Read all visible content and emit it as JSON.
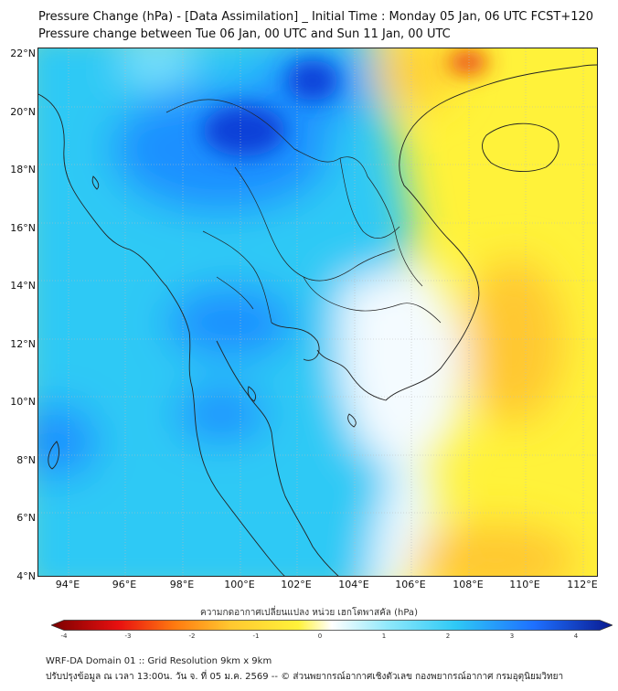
{
  "header": {
    "title_line1": "Pressure Change (hPa) - [Data Assimilation] _ Initial Time : Monday 05 Jan, 06 UTC FCST+120",
    "title_line2": "Pressure change between Tue 06 Jan, 00 UTC and Sun 11 Jan, 00 UTC"
  },
  "map": {
    "lat_labels": [
      "22°N",
      "20°N",
      "18°N",
      "16°N",
      "14°N",
      "12°N",
      "10°N",
      "8°N",
      "6°N",
      "4°N"
    ],
    "lon_labels": [
      "94°E",
      "96°E",
      "98°E",
      "100°E",
      "102°E",
      "104°E",
      "106°E",
      "108°E",
      "110°E",
      "112°E"
    ],
    "colors": {
      "sea_white": "#ffffff",
      "light_cyan": "#7fe3fb",
      "cyan": "#2fc9f5",
      "blue": "#1e90ff",
      "dark_blue": "#0a3fd8",
      "yellow": "#fff23a",
      "orange": "#ffc830",
      "red": "#e83010",
      "coast": "#222222"
    }
  },
  "colorbar": {
    "label": "ความกดอากาศเปลี่ยนแปลง หน่วย เฮกโตพาสคัล (hPa)",
    "ticks": [
      "-4",
      "-3",
      "-2",
      "-1",
      "0",
      "1",
      "2",
      "3",
      "4"
    ],
    "range": [
      -4,
      4
    ]
  },
  "footer": {
    "line1": "WRF-DA Domain 01 :: Grid Resolution 9km x 9km",
    "line2": "ปรับปรุงข้อมูล ณ เวลา 13:00น. วัน จ. ที่ 05 ม.ค. 2569 -- © ส่วนพยากรณ์อากาศเชิงตัวเลข กองพยากรณ์อากาศ กรมอุตุนิยมวิทยา"
  }
}
